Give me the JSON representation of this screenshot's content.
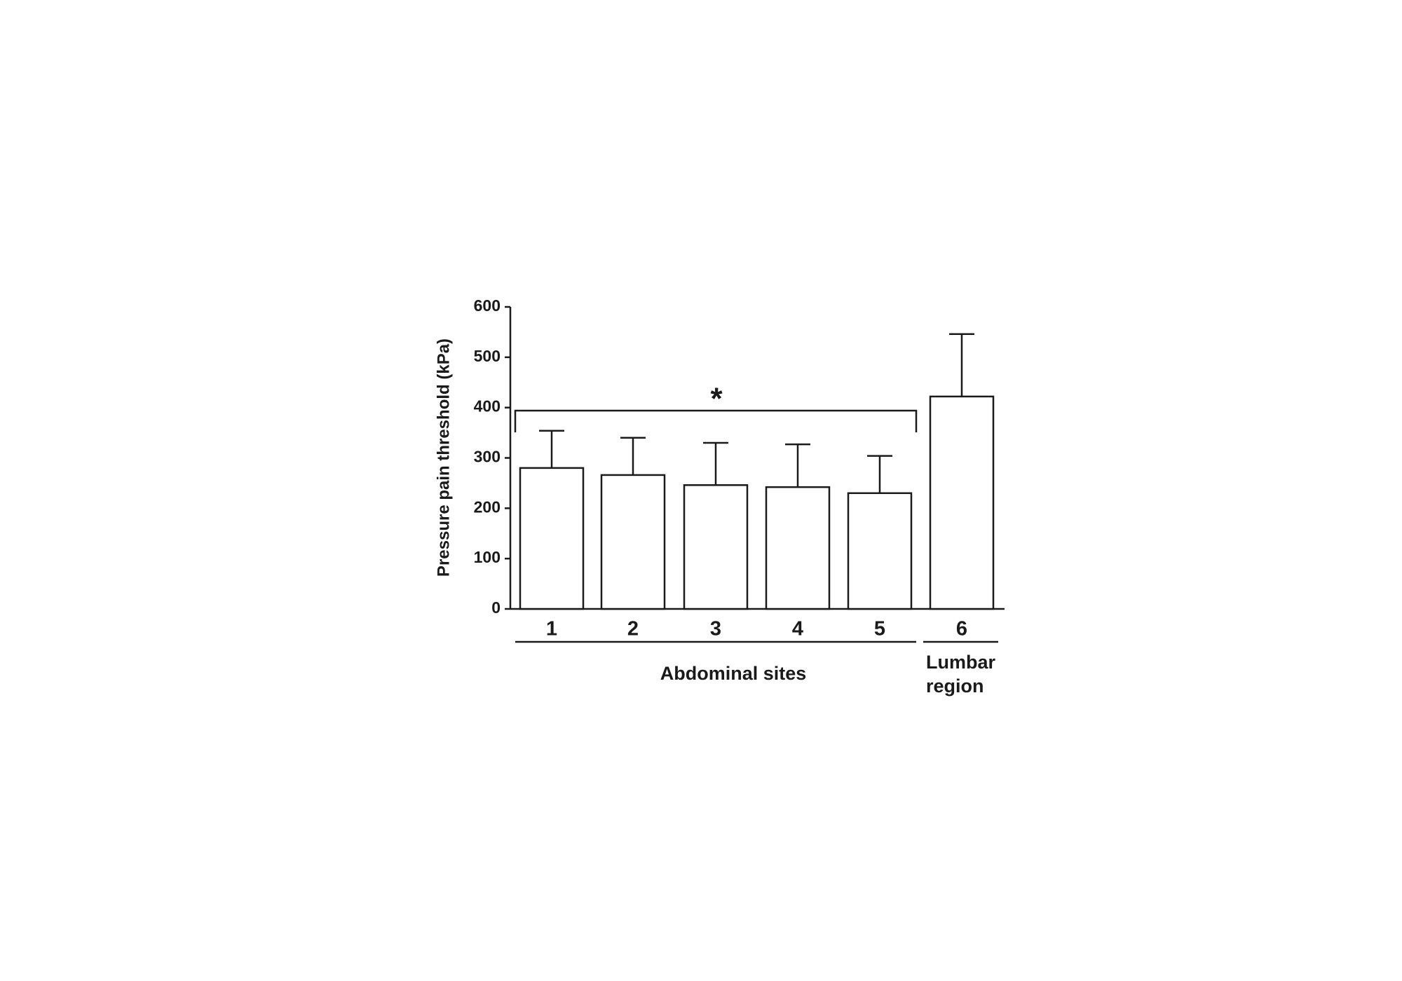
{
  "chart_data": {
    "type": "bar",
    "y_label": "Pressure pain threshold (kPa)",
    "categories": [
      "1",
      "2",
      "3",
      "4",
      "5",
      "6"
    ],
    "values": [
      280,
      266,
      246,
      242,
      230,
      422
    ],
    "errors": [
      74,
      74,
      84,
      85,
      74,
      124
    ],
    "color": "#ffffff",
    "ylim": [
      0,
      600
    ],
    "yticks": [
      0,
      100,
      200,
      300,
      400,
      500,
      600
    ],
    "groups": [
      "Abdominal sites",
      "Lumbar region"
    ],
    "annotation": "*"
  }
}
